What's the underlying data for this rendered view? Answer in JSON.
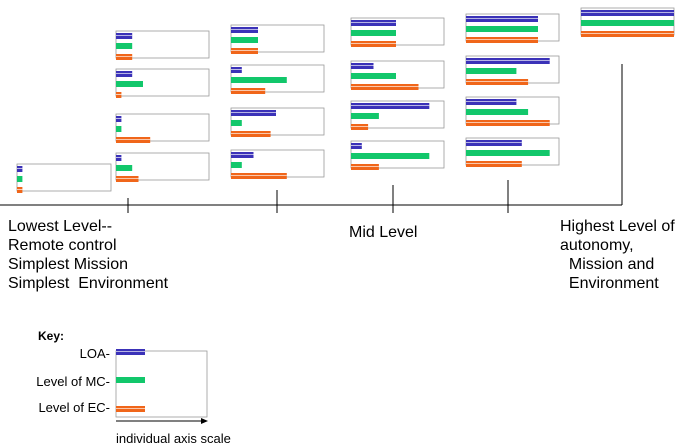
{
  "colors": {
    "loa": "#3b32b8",
    "mc": "#12c76b",
    "ec": "#f0661a",
    "box": "#9a9a9a",
    "axis": "#000000"
  },
  "axis_labels": {
    "lowest": "Lowest Level--\nRemote control\nSimplest Mission\nSimplest  Environment",
    "mid": "Mid Level",
    "highest": "Highest Level of\nautonomy,\n  Mission and\n  Environment"
  },
  "key": {
    "title": "Key:",
    "loa_label": "LOA-",
    "mc_label": "Level of MC-",
    "ec_label": "Level of EC-",
    "scale_label": "individual axis scale"
  },
  "chart_data": {
    "type": "bar",
    "description_values_are_fractions_of_axis_scale": true,
    "series_order": [
      "loa",
      "mc",
      "ec"
    ],
    "groups": [
      {
        "column": 0,
        "items": [
          {
            "loa": 0.06,
            "mc": 0.06,
            "ec": 0.06
          }
        ]
      },
      {
        "column": 1,
        "items": [
          {
            "loa": 0.18,
            "mc": 0.18,
            "ec": 0.18
          },
          {
            "loa": 0.18,
            "mc": 0.3,
            "ec": 0.06
          },
          {
            "loa": 0.06,
            "mc": 0.06,
            "ec": 0.38
          },
          {
            "loa": 0.06,
            "mc": 0.18,
            "ec": 0.25
          }
        ]
      },
      {
        "column": 2,
        "items": [
          {
            "loa": 0.3,
            "mc": 0.3,
            "ec": 0.3
          },
          {
            "loa": 0.12,
            "mc": 0.62,
            "ec": 0.38
          },
          {
            "loa": 0.5,
            "mc": 0.12,
            "ec": 0.44
          },
          {
            "loa": 0.25,
            "mc": 0.12,
            "ec": 0.62
          }
        ]
      },
      {
        "column": 3,
        "items": [
          {
            "loa": 0.5,
            "mc": 0.5,
            "ec": 0.5
          },
          {
            "loa": 0.25,
            "mc": 0.5,
            "ec": 0.75
          },
          {
            "loa": 0.87,
            "mc": 0.31,
            "ec": 0.19
          },
          {
            "loa": 0.12,
            "mc": 0.87,
            "ec": 0.31
          }
        ]
      },
      {
        "column": 4,
        "items": [
          {
            "loa": 0.8,
            "mc": 0.8,
            "ec": 0.8
          },
          {
            "loa": 0.93,
            "mc": 0.56,
            "ec": 0.69
          },
          {
            "loa": 0.56,
            "mc": 0.69,
            "ec": 0.93
          },
          {
            "loa": 0.62,
            "mc": 0.93,
            "ec": 0.62
          }
        ]
      },
      {
        "column": 5,
        "items": [
          {
            "loa": 1.0,
            "mc": 1.0,
            "ec": 1.0
          }
        ]
      }
    ]
  }
}
